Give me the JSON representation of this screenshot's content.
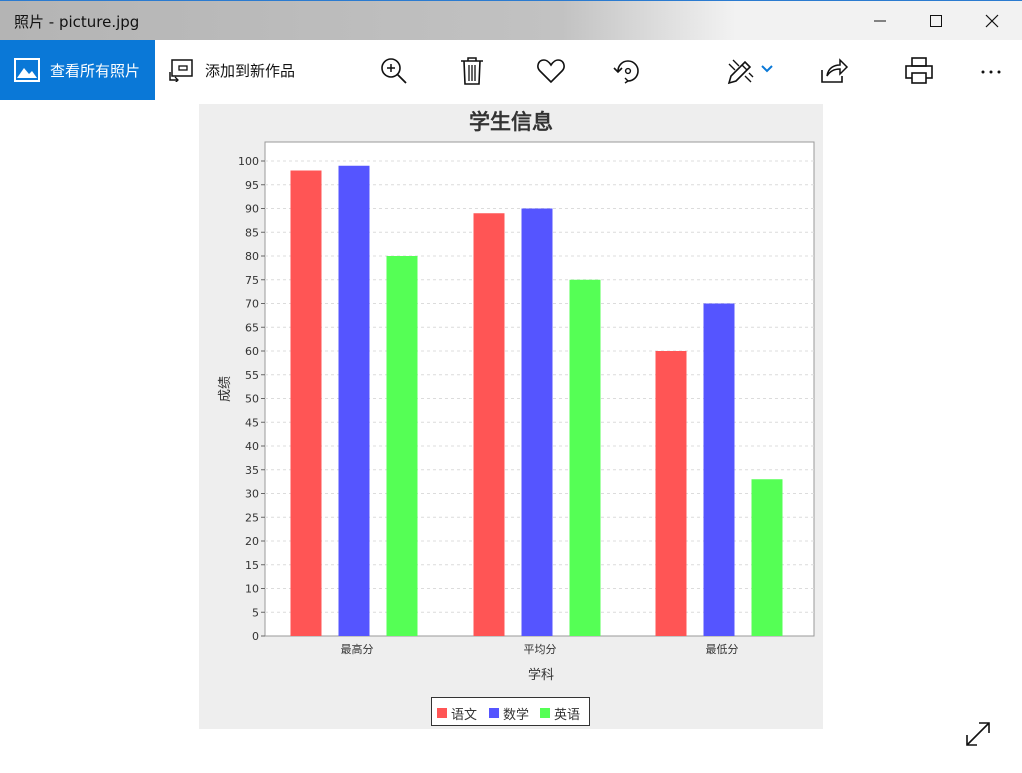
{
  "window": {
    "title": "照片 - picture.jpg"
  },
  "toolbar": {
    "view_all_label": "查看所有照片",
    "add_to_creation_label": "添加到新作品"
  },
  "icons": [
    "photos-app-icon",
    "add-creation-icon",
    "zoom-in-icon",
    "delete-icon",
    "favorite-icon",
    "rotate-icon",
    "edit-draw-icon",
    "chevron-down-icon",
    "share-icon",
    "print-icon",
    "more-icon",
    "expand-icon",
    "minimize-icon",
    "maximize-icon",
    "close-icon"
  ],
  "colors": {
    "accent": "#0a78d7",
    "chevron": "#0a78d7"
  },
  "chart_data": {
    "type": "bar",
    "title": "学生信息",
    "xlabel": "学科",
    "ylabel": "成绩",
    "categories": [
      "最高分",
      "平均分",
      "最低分"
    ],
    "series": [
      {
        "name": "语文",
        "color": "#ff5555",
        "values": [
          98,
          89,
          60
        ]
      },
      {
        "name": "数学",
        "color": "#5555ff",
        "values": [
          99,
          90,
          70
        ]
      },
      {
        "name": "英语",
        "color": "#55ff55",
        "values": [
          80,
          75,
          33
        ]
      }
    ],
    "ylim": [
      0,
      100
    ],
    "yticks": [
      0,
      5,
      10,
      15,
      20,
      25,
      30,
      35,
      40,
      45,
      50,
      55,
      60,
      65,
      70,
      75,
      80,
      85,
      90,
      95,
      100
    ],
    "grid": true,
    "legend_position": "bottom"
  }
}
